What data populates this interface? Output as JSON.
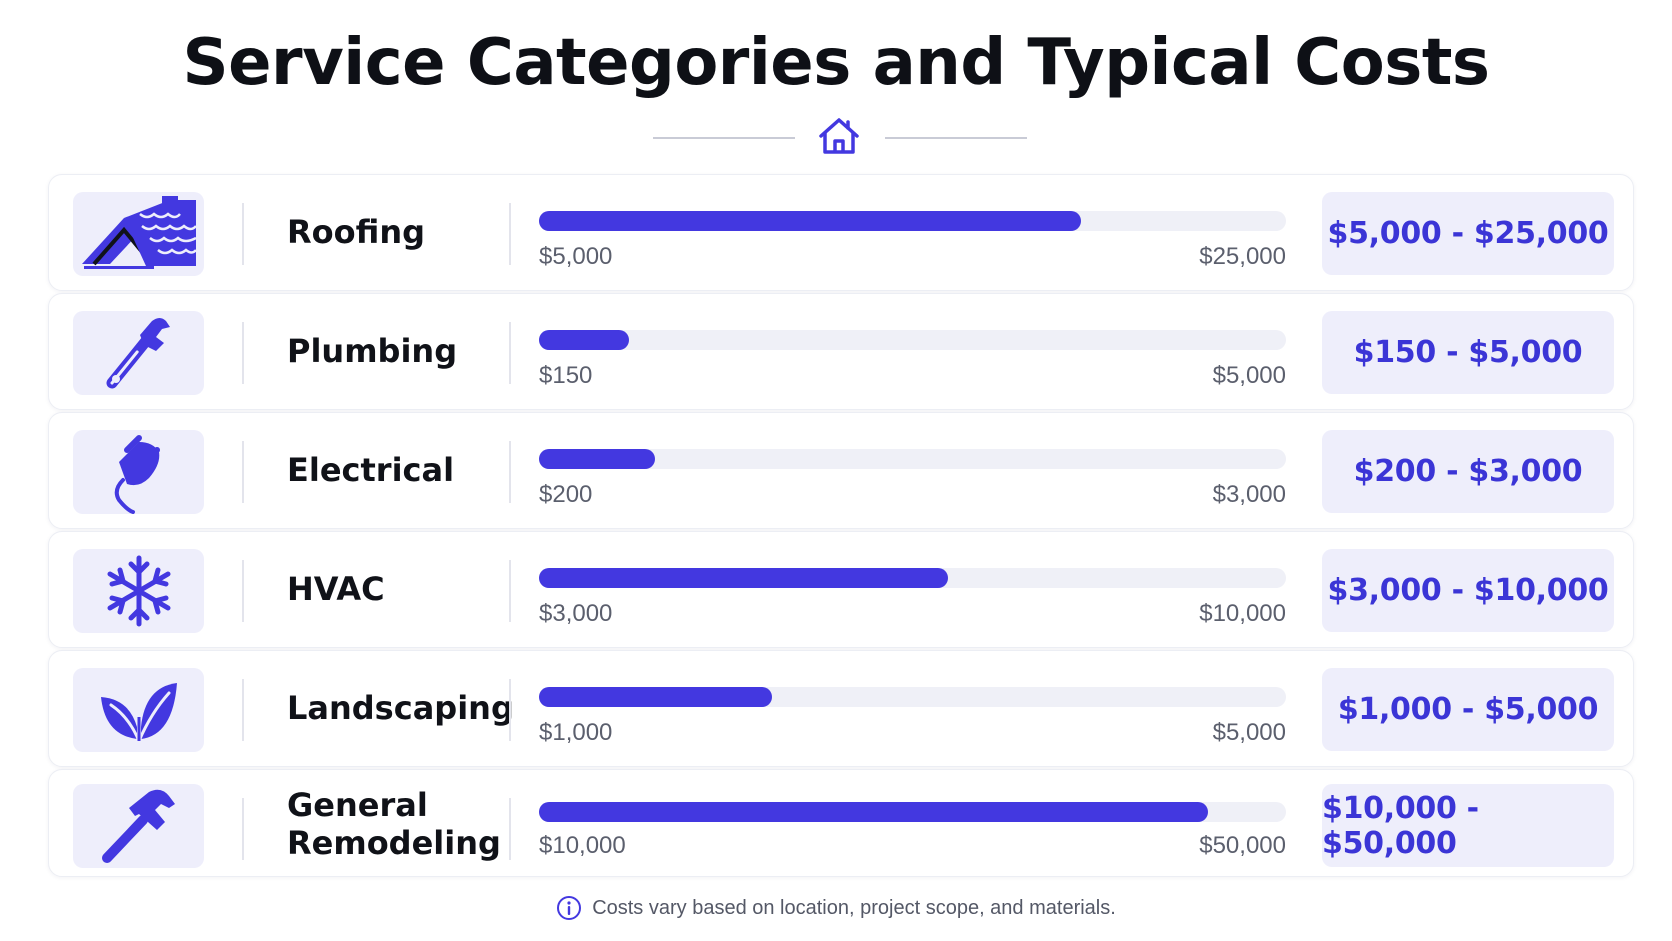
{
  "title": "Service Categories and Typical Costs",
  "accent_color": "#4338e0",
  "header_icon": "house-icon",
  "chart_data": {
    "type": "bar",
    "orientation": "horizontal",
    "categories": [
      "Roofing",
      "Plumbing",
      "Electrical",
      "HVAC",
      "Landscaping",
      "General Remodeling"
    ],
    "series": [
      {
        "min_labels": [
          "$5,000",
          "$150",
          "$200",
          "$3,000",
          "$1,000",
          "$10,000"
        ],
        "max_labels": [
          "$25,000",
          "$5,000",
          "$3,000",
          "$10,000",
          "$5,000",
          "$50,000"
        ],
        "range_labels": [
          "$5,000 - $25,000",
          "$150 - $5,000",
          "$200 - $3,000",
          "$3,000 - $10,000",
          "$1,000 - $5,000",
          "$10,000 - $50,000"
        ],
        "min": [
          5000,
          150,
          200,
          3000,
          1000,
          10000
        ],
        "max": [
          25000,
          5000,
          3000,
          10000,
          5000,
          50000
        ]
      }
    ],
    "fill_fraction": [
      0.725,
      0.12,
      0.155,
      0.548,
      0.312,
      0.895
    ],
    "icons": [
      "roof-icon",
      "pipe-wrench-icon",
      "plug-icon",
      "snowflake-icon",
      "leaf-icon",
      "hammer-icon"
    ]
  },
  "footnote": "Costs vary based on location, project scope, and materials.",
  "footnote_icon": "info-icon"
}
